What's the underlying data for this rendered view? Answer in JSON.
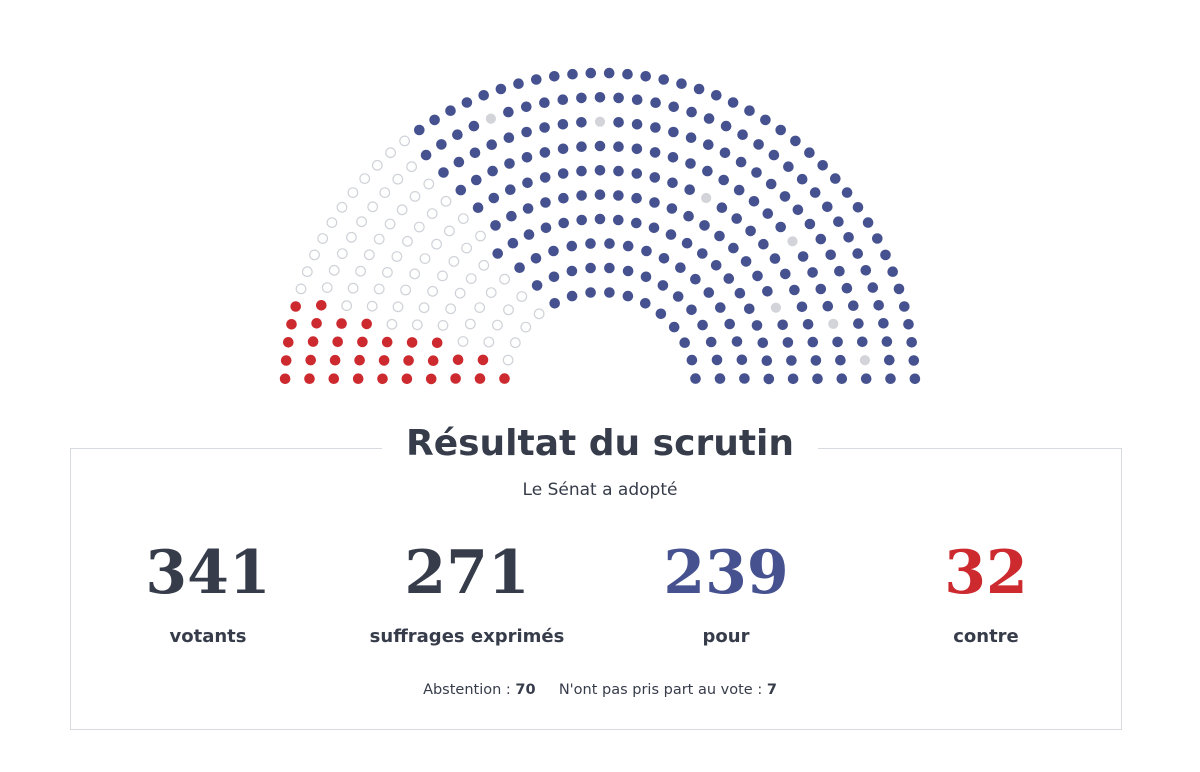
{
  "header": {
    "title": "Résultat du scrutin",
    "outcome": "Le Sénat a adopté"
  },
  "stats": [
    {
      "value": "341",
      "label": "votants"
    },
    {
      "value": "271",
      "label": "suffrages exprimés"
    },
    {
      "value": "239",
      "label": "pour"
    },
    {
      "value": "32",
      "label": "contre"
    }
  ],
  "footer": {
    "abstention_label": "Abstention :",
    "abstention_value": "70",
    "absent_label": "N'ont pas pris part au vote :",
    "absent_value": "7"
  },
  "colors": {
    "text": "#363c4a",
    "pour": "#46528f",
    "contre": "#cd2a30",
    "abstention": "#cfd2d8",
    "non_votant": "#d2d4d9"
  },
  "chart_data": {
    "type": "hemicycle",
    "categories": [
      "pour",
      "contre",
      "abstention",
      "n'ont pas pris part au vote"
    ],
    "values": [
      239,
      32,
      70,
      7
    ],
    "total_seats": 348
  }
}
